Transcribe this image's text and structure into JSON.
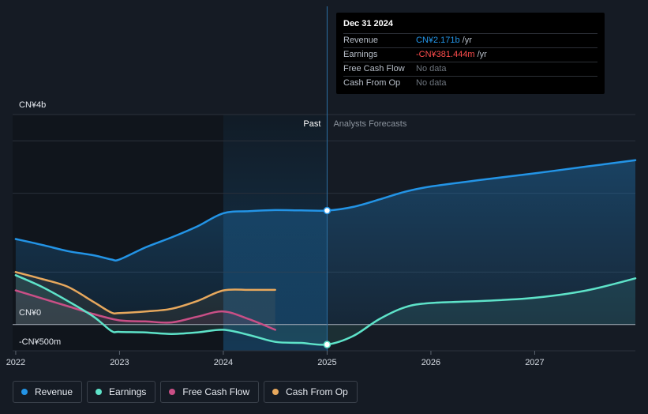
{
  "colors": {
    "revenue": "#2394e6",
    "earnings": "#5ee3c9",
    "free_cash_flow": "#c94f86",
    "cash_from_op": "#e7a85d",
    "negative": "#ff4d4d",
    "nodata": "#6d747d"
  },
  "tooltip": {
    "date": "Dec 31 2024",
    "rows": [
      {
        "name": "Revenue",
        "value": "CN¥2.171b",
        "unit": "/yr",
        "color": "#2394e6"
      },
      {
        "name": "Earnings",
        "value": "-CN¥381.444m",
        "unit": "/yr",
        "color": "#ff4d4d"
      },
      {
        "name": "Free Cash Flow",
        "value": "No data",
        "unit": "",
        "color": "#6d747d"
      },
      {
        "name": "Cash From Op",
        "value": "No data",
        "unit": "",
        "color": "#6d747d"
      }
    ]
  },
  "chart_data": {
    "type": "line",
    "title": "",
    "xlabel": "",
    "ylabel": "",
    "y_tick_labels": {
      "top": "CN¥4b",
      "zero": "CN¥0",
      "bottom": "-CN¥500m"
    },
    "ylim": [
      -500,
      4000
    ],
    "xlim": [
      2021.97,
      2027.97
    ],
    "x_ticks": [
      2022,
      2023,
      2024,
      2025,
      2026,
      2027
    ],
    "x_tick_labels": [
      "2022",
      "2023",
      "2024",
      "2025",
      "2026",
      "2027"
    ],
    "divider_x": 2025.0,
    "highlight_band": [
      2024.0,
      2025.0
    ],
    "past_label": "Past",
    "forecast_label": "Analysts Forecasts",
    "series": [
      {
        "name": "Revenue",
        "key": "revenue",
        "points": [
          [
            2022.0,
            1630
          ],
          [
            2022.25,
            1520
          ],
          [
            2022.5,
            1400
          ],
          [
            2022.75,
            1320
          ],
          [
            2022.92,
            1240
          ],
          [
            2023.0,
            1240
          ],
          [
            2023.25,
            1470
          ],
          [
            2023.5,
            1660
          ],
          [
            2023.75,
            1870
          ],
          [
            2024.0,
            2120
          ],
          [
            2024.25,
            2160
          ],
          [
            2024.5,
            2180
          ],
          [
            2024.75,
            2175
          ],
          [
            2025.0,
            2171
          ],
          [
            2025.25,
            2240
          ],
          [
            2025.5,
            2380
          ],
          [
            2025.75,
            2530
          ],
          [
            2026.0,
            2630
          ],
          [
            2026.5,
            2760
          ],
          [
            2027.0,
            2880
          ],
          [
            2027.5,
            3010
          ],
          [
            2027.97,
            3130
          ]
        ]
      },
      {
        "name": "Earnings",
        "key": "earnings",
        "points": [
          [
            2022.0,
            940
          ],
          [
            2022.25,
            720
          ],
          [
            2022.5,
            450
          ],
          [
            2022.75,
            150
          ],
          [
            2022.92,
            -120
          ],
          [
            2023.0,
            -140
          ],
          [
            2023.25,
            -150
          ],
          [
            2023.5,
            -180
          ],
          [
            2023.75,
            -150
          ],
          [
            2024.0,
            -100
          ],
          [
            2024.25,
            -200
          ],
          [
            2024.5,
            -330
          ],
          [
            2024.75,
            -350
          ],
          [
            2025.0,
            -381
          ],
          [
            2025.25,
            -220
          ],
          [
            2025.5,
            100
          ],
          [
            2025.75,
            330
          ],
          [
            2026.0,
            410
          ],
          [
            2026.5,
            450
          ],
          [
            2027.0,
            510
          ],
          [
            2027.5,
            650
          ],
          [
            2027.97,
            880
          ]
        ]
      },
      {
        "name": "Free Cash Flow",
        "key": "free_cash_flow",
        "points": [
          [
            2022.0,
            650
          ],
          [
            2022.25,
            500
          ],
          [
            2022.5,
            350
          ],
          [
            2022.75,
            200
          ],
          [
            2023.0,
            80
          ],
          [
            2023.25,
            60
          ],
          [
            2023.5,
            40
          ],
          [
            2023.75,
            150
          ],
          [
            2024.0,
            250
          ],
          [
            2024.25,
            100
          ],
          [
            2024.5,
            -100
          ]
        ]
      },
      {
        "name": "Cash From Op",
        "key": "cash_from_op",
        "points": [
          [
            2022.0,
            1000
          ],
          [
            2022.25,
            870
          ],
          [
            2022.5,
            720
          ],
          [
            2022.75,
            430
          ],
          [
            2022.92,
            230
          ],
          [
            2023.0,
            220
          ],
          [
            2023.25,
            250
          ],
          [
            2023.5,
            300
          ],
          [
            2023.75,
            450
          ],
          [
            2024.0,
            650
          ],
          [
            2024.25,
            660
          ],
          [
            2024.5,
            660
          ]
        ]
      }
    ],
    "highlight_points": [
      {
        "series": "revenue",
        "x": 2025.0,
        "y": 2171
      },
      {
        "series": "earnings",
        "x": 2025.0,
        "y": -381.444
      }
    ]
  },
  "legend": [
    {
      "label": "Revenue",
      "key": "revenue"
    },
    {
      "label": "Earnings",
      "key": "earnings"
    },
    {
      "label": "Free Cash Flow",
      "key": "free_cash_flow"
    },
    {
      "label": "Cash From Op",
      "key": "cash_from_op"
    }
  ]
}
